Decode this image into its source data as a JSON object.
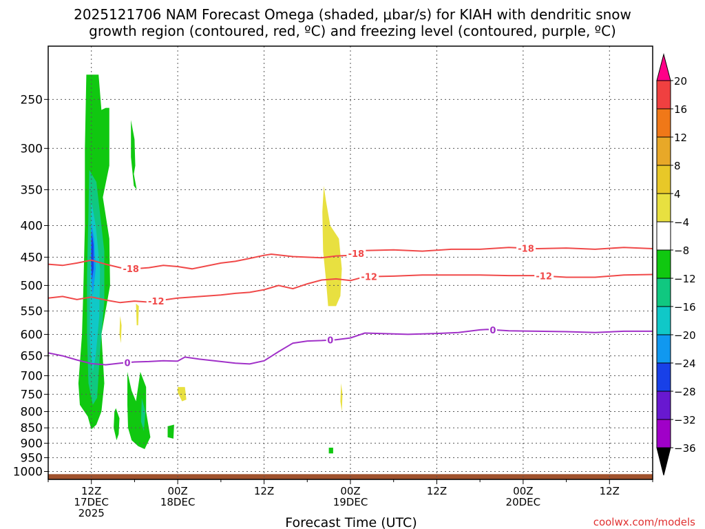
{
  "title_line1": "2025121706 NAM Forecast Omega (shaded, μbar/s) for KIAH with dendritic snow",
  "title_line2": "growth region (contoured, red, ºC) and freezing level (contoured, purple, ºC)",
  "xlabel": "Forecast Time (UTC)",
  "credit": "coolwx.com/models",
  "chart_data": {
    "type": "heatmap",
    "title": "2025121706 NAM Forecast Omega (shaded, μbar/s) for KIAH with dendritic snow growth region (contoured, red, ºC) and freezing level (contoured, purple, ºC)",
    "xlabel": "Forecast Time (UTC)",
    "ylabel": "",
    "x_range_hours": [
      6,
      90
    ],
    "y_axis": "pressure (hPa), inverted, log scale",
    "y_range": [
      1030,
      205
    ],
    "grid": true,
    "y_ticks": [
      250,
      300,
      350,
      400,
      450,
      500,
      550,
      600,
      650,
      700,
      750,
      800,
      850,
      900,
      950,
      1000
    ],
    "x_ticks": [
      {
        "hour": 12,
        "line1": "12Z",
        "line2": "17DEC",
        "line3": "2025"
      },
      {
        "hour": 24,
        "line1": "00Z",
        "line2": "18DEC",
        "line3": ""
      },
      {
        "hour": 36,
        "line1": "12Z",
        "line2": "",
        "line3": ""
      },
      {
        "hour": 48,
        "line1": "00Z",
        "line2": "19DEC",
        "line3": ""
      },
      {
        "hour": 60,
        "line1": "12Z",
        "line2": "",
        "line3": ""
      },
      {
        "hour": 72,
        "line1": "00Z",
        "line2": "20DEC",
        "line3": ""
      },
      {
        "hour": 84,
        "line1": "12Z",
        "line2": "",
        "line3": ""
      }
    ],
    "colorbar": {
      "labels": [
        "20",
        "16",
        "12",
        "8",
        "4",
        "-4",
        "-8",
        "-12",
        "-16",
        "-20",
        "-24",
        "-28",
        "-32",
        "-36"
      ],
      "colors": [
        "#ff0088",
        "#f04040",
        "#f07818",
        "#e8a828",
        "#e8c828",
        "#e8e040",
        "#ffffff",
        "#10c810",
        "#10c880",
        "#10c8c8",
        "#1098f0",
        "#1840e8",
        "#6818d0",
        "#a000c8",
        "#a0a0a0",
        "#000000"
      ]
    },
    "contours": [
      {
        "name": "-18",
        "color": "#f04848",
        "label": "-18",
        "label_hours": [
          17.5,
          48.8,
          72.4
        ],
        "points": [
          [
            6,
            462
          ],
          [
            8,
            464
          ],
          [
            10,
            460
          ],
          [
            12,
            455
          ],
          [
            14,
            462
          ],
          [
            16,
            468
          ],
          [
            18,
            470
          ],
          [
            20,
            468
          ],
          [
            22,
            464
          ],
          [
            24,
            466
          ],
          [
            26,
            470
          ],
          [
            28,
            465
          ],
          [
            30,
            460
          ],
          [
            32,
            457
          ],
          [
            34,
            452
          ],
          [
            36,
            447
          ],
          [
            37,
            445
          ],
          [
            40,
            449
          ],
          [
            44,
            451
          ],
          [
            46,
            448
          ],
          [
            48,
            447
          ],
          [
            50,
            439
          ],
          [
            54,
            438
          ],
          [
            58,
            440
          ],
          [
            62,
            437
          ],
          [
            66,
            437
          ],
          [
            70,
            434
          ],
          [
            74,
            436
          ],
          [
            78,
            435
          ],
          [
            82,
            437
          ],
          [
            86,
            434
          ],
          [
            90,
            436
          ]
        ]
      },
      {
        "name": "-12",
        "color": "#f04848",
        "label": "-12",
        "label_hours": [
          21,
          50.6,
          74.9
        ],
        "points": [
          [
            6,
            524
          ],
          [
            8,
            521
          ],
          [
            10,
            527
          ],
          [
            12,
            522
          ],
          [
            14,
            528
          ],
          [
            16,
            533
          ],
          [
            18,
            530
          ],
          [
            20,
            532
          ],
          [
            22,
            528
          ],
          [
            24,
            524
          ],
          [
            26,
            522
          ],
          [
            28,
            520
          ],
          [
            30,
            518
          ],
          [
            32,
            515
          ],
          [
            34,
            513
          ],
          [
            36,
            508
          ],
          [
            38,
            500
          ],
          [
            40,
            506
          ],
          [
            42,
            497
          ],
          [
            44,
            490
          ],
          [
            46,
            488
          ],
          [
            48,
            491
          ],
          [
            50,
            484
          ],
          [
            54,
            483
          ],
          [
            58,
            481
          ],
          [
            62,
            481
          ],
          [
            66,
            481
          ],
          [
            70,
            482
          ],
          [
            74,
            482
          ],
          [
            78,
            485
          ],
          [
            82,
            485
          ],
          [
            86,
            481
          ],
          [
            90,
            480
          ]
        ]
      },
      {
        "name": "0",
        "color": "#a030c8",
        "label": "0",
        "label_hours": [
          17,
          45.2,
          67.8
        ],
        "points": [
          [
            6,
            643
          ],
          [
            8,
            650
          ],
          [
            10,
            660
          ],
          [
            12,
            669
          ],
          [
            14,
            672
          ],
          [
            16,
            668
          ],
          [
            18,
            665
          ],
          [
            20,
            664
          ],
          [
            22,
            662
          ],
          [
            24,
            663
          ],
          [
            25,
            653
          ],
          [
            27,
            658
          ],
          [
            30,
            664
          ],
          [
            32,
            668
          ],
          [
            34,
            670
          ],
          [
            36,
            662
          ],
          [
            38,
            640
          ],
          [
            40,
            620
          ],
          [
            42,
            615
          ],
          [
            44,
            614
          ],
          [
            46,
            612
          ],
          [
            48,
            608
          ],
          [
            50,
            597
          ],
          [
            52,
            598
          ],
          [
            56,
            600
          ],
          [
            60,
            598
          ],
          [
            63,
            596
          ],
          [
            66,
            590
          ],
          [
            67,
            589
          ],
          [
            70,
            592
          ],
          [
            74,
            593
          ],
          [
            78,
            594
          ],
          [
            82,
            596
          ],
          [
            86,
            593
          ],
          [
            90,
            593
          ]
        ]
      }
    ],
    "shaded_regions": [
      {
        "name": "green-main",
        "value": -6,
        "color": "#10c810",
        "points": [
          [
            11.3,
            228
          ],
          [
            13,
            228
          ],
          [
            13.4,
            260
          ],
          [
            14,
            258
          ],
          [
            14.5,
            258
          ],
          [
            14.5,
            320
          ],
          [
            13.6,
            360
          ],
          [
            14.5,
            420
          ],
          [
            14.6,
            500
          ],
          [
            13.4,
            600
          ],
          [
            13.8,
            720
          ],
          [
            13.4,
            800
          ],
          [
            12.7,
            840
          ],
          [
            12,
            855
          ],
          [
            11.5,
            815
          ],
          [
            10.4,
            780
          ],
          [
            10.2,
            720
          ],
          [
            10.7,
            600
          ],
          [
            10.9,
            500
          ],
          [
            11.1,
            400
          ],
          [
            11.1,
            300
          ]
        ]
      },
      {
        "name": "teal-core",
        "value": -10,
        "color": "#10c880",
        "points": [
          [
            11.7,
            325
          ],
          [
            12.7,
            340
          ],
          [
            13.8,
            440
          ],
          [
            13.8,
            530
          ],
          [
            13.2,
            640
          ],
          [
            12.8,
            760
          ],
          [
            12.2,
            780
          ],
          [
            11.6,
            720
          ],
          [
            11.4,
            600
          ],
          [
            11.4,
            480
          ],
          [
            11.6,
            380
          ]
        ]
      },
      {
        "name": "cyan-core",
        "value": -14,
        "color": "#10c8c8",
        "points": [
          [
            12,
            365
          ],
          [
            12.6,
            400
          ],
          [
            13.2,
            470
          ],
          [
            13.1,
            560
          ],
          [
            12.6,
            650
          ],
          [
            12.2,
            690
          ],
          [
            11.8,
            620
          ],
          [
            11.8,
            520
          ],
          [
            11.9,
            420
          ]
        ]
      },
      {
        "name": "blue-core",
        "value": -18,
        "color": "#1098f0",
        "points": [
          [
            12,
            395
          ],
          [
            12.4,
            420
          ],
          [
            12.6,
            470
          ],
          [
            12.2,
            520
          ],
          [
            11.9,
            480
          ],
          [
            11.9,
            420
          ]
        ]
      },
      {
        "name": "navy-core",
        "value": -22,
        "color": "#1840e8",
        "points": [
          [
            12.05,
            408
          ],
          [
            12.3,
            430
          ],
          [
            12.3,
            470
          ],
          [
            12.1,
            490
          ],
          [
            11.95,
            455
          ]
        ]
      },
      {
        "name": "green-upper",
        "value": -6,
        "color": "#10c810",
        "points": [
          [
            17.5,
            270
          ],
          [
            18,
            290
          ],
          [
            18.1,
            320
          ],
          [
            17.9,
            330
          ],
          [
            18.3,
            350
          ],
          [
            17.9,
            345
          ],
          [
            17.5,
            310
          ],
          [
            17.5,
            280
          ]
        ]
      },
      {
        "name": "green-low1",
        "value": -6,
        "color": "#10c810",
        "points": [
          [
            15.4,
            790
          ],
          [
            15.9,
            820
          ],
          [
            15.8,
            870
          ],
          [
            15.5,
            890
          ],
          [
            15.1,
            850
          ],
          [
            15.2,
            800
          ]
        ]
      },
      {
        "name": "green-low2",
        "value": -6,
        "color": "#10c810",
        "points": [
          [
            17,
            690
          ],
          [
            17.6,
            740
          ],
          [
            18.2,
            770
          ],
          [
            18.8,
            690
          ],
          [
            19.6,
            730
          ],
          [
            19.6,
            800
          ],
          [
            20.2,
            880
          ],
          [
            19.4,
            920
          ],
          [
            18.5,
            910
          ],
          [
            17.6,
            890
          ],
          [
            17.1,
            850
          ],
          [
            17,
            780
          ]
        ]
      },
      {
        "name": "teal-low",
        "value": -10,
        "color": "#10c880",
        "points": [
          [
            19,
            760
          ],
          [
            19.5,
            800
          ],
          [
            19.3,
            860
          ],
          [
            18.9,
            830
          ]
        ]
      },
      {
        "name": "green-low3",
        "value": -6,
        "color": "#10c810",
        "points": [
          [
            22.6,
            845
          ],
          [
            23.5,
            840
          ],
          [
            23.4,
            885
          ],
          [
            22.6,
            880
          ]
        ]
      },
      {
        "name": "green-dot",
        "value": -6,
        "color": "#10c810",
        "points": [
          [
            45,
            915
          ],
          [
            45.6,
            915
          ],
          [
            45.6,
            935
          ],
          [
            45,
            935
          ]
        ]
      },
      {
        "name": "yellow-upper",
        "value": 5,
        "color": "#e8e040",
        "points": [
          [
            44.3,
            345
          ],
          [
            44.6,
            365
          ],
          [
            45.2,
            400
          ],
          [
            46.4,
            420
          ],
          [
            46.8,
            470
          ],
          [
            46.6,
            520
          ],
          [
            46,
            540
          ],
          [
            44.9,
            540
          ],
          [
            44.6,
            490
          ],
          [
            44.2,
            440
          ],
          [
            44.1,
            380
          ]
        ]
      },
      {
        "name": "yellow-small1",
        "value": 5,
        "color": "#e8e040",
        "points": [
          [
            18.2,
            535
          ],
          [
            18.6,
            540
          ],
          [
            18.5,
            580
          ],
          [
            18.3,
            580
          ]
        ]
      },
      {
        "name": "yellow-small2",
        "value": 5,
        "color": "#e8e040",
        "points": [
          [
            16,
            560
          ],
          [
            16.2,
            580
          ],
          [
            16.1,
            620
          ],
          [
            15.9,
            600
          ]
        ]
      },
      {
        "name": "yellow-small3",
        "value": 5,
        "color": "#e8e040",
        "points": [
          [
            24,
            730
          ],
          [
            25,
            730
          ],
          [
            25.2,
            765
          ],
          [
            24.6,
            770
          ],
          [
            24,
            745
          ]
        ]
      },
      {
        "name": "yellow-small4",
        "value": 5,
        "color": "#e8e040",
        "points": [
          [
            46.7,
            720
          ],
          [
            46.9,
            750
          ],
          [
            46.8,
            800
          ],
          [
            46.6,
            770
          ]
        ]
      }
    ],
    "terrain": {
      "name": "surface",
      "color": "#a0522d",
      "top_hpa": 1010
    }
  }
}
